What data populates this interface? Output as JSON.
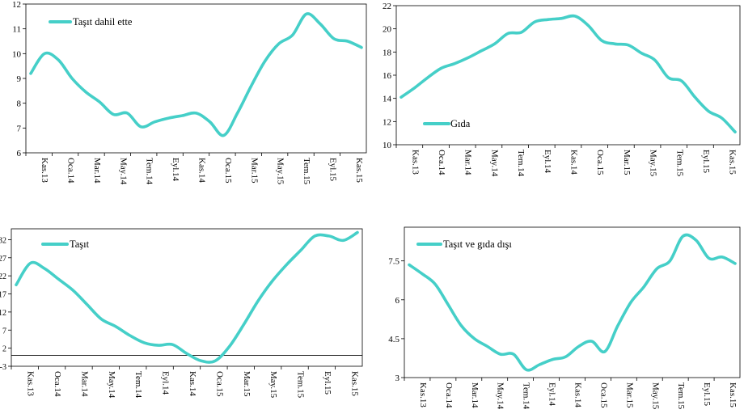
{
  "colors": {
    "line": "#45CFC8",
    "axis": "#000000"
  },
  "chart_data": [
    {
      "type": "line",
      "series": [
        {
          "name": "Taşıt dahil ette",
          "values": [
            9.2,
            10.0,
            9.75,
            9.0,
            8.45,
            8.05,
            7.55,
            7.6,
            7.05,
            7.25,
            7.4,
            7.5,
            7.6,
            7.25,
            6.7,
            7.6,
            8.7,
            9.7,
            10.4,
            10.75,
            11.6,
            11.2,
            10.6,
            10.5,
            10.25
          ]
        }
      ],
      "x_ticks": [
        "Kas.13",
        "Oca.14",
        "Mar.14",
        "May.14",
        "Tem.14",
        "Eyl.14",
        "Kas.14",
        "Oca.15",
        "Mar.15",
        "May.15",
        "Tem.15",
        "Eyl.15",
        "Kas.15"
      ],
      "y_ticks": [
        "6",
        "7",
        "8",
        "9",
        "10",
        "11",
        "12"
      ],
      "ylim": [
        6,
        12
      ],
      "legend": "top-left"
    },
    {
      "type": "line",
      "series": [
        {
          "name": "Gıda",
          "values": [
            14.1,
            14.9,
            15.8,
            16.6,
            17.0,
            17.5,
            18.1,
            18.7,
            19.6,
            19.7,
            20.6,
            20.8,
            20.9,
            21.1,
            20.3,
            19.0,
            18.7,
            18.6,
            17.9,
            17.3,
            15.8,
            15.5,
            14.1,
            12.9,
            12.3,
            11.1
          ]
        }
      ],
      "x_ticks": [
        "Kas.13",
        "Oca.14",
        "Mar.14",
        "May.14",
        "Tem.14",
        "Eyl.14",
        "Kas.14",
        "Oca.15",
        "Mar.15",
        "May.15",
        "Tem.15",
        "Eyl.15",
        "Kas.15"
      ],
      "y_ticks": [
        "10",
        "12",
        "14",
        "16",
        "18",
        "20",
        "22"
      ],
      "ylim": [
        10,
        22
      ],
      "legend": "bottom-left"
    },
    {
      "type": "line",
      "series": [
        {
          "name": "Taşıt",
          "values": [
            19.5,
            25.5,
            24.0,
            21.0,
            18.0,
            14.0,
            10.0,
            8.0,
            5.5,
            3.5,
            2.8,
            3.0,
            0.5,
            -1.5,
            -1.5,
            2.5,
            8.5,
            15.0,
            20.5,
            25.0,
            29.0,
            33.0,
            33.0,
            31.8,
            34.0
          ]
        }
      ],
      "x_ticks": [
        "Kas.13",
        "Oca.14",
        "Mar.14",
        "May.14",
        "Tem.14",
        "Eyl.14",
        "Kas.14",
        "Oca.15",
        "Mar.15",
        "May.15",
        "Tem.15",
        "Eyl.15",
        "Kas.15"
      ],
      "y_ticks": [
        "-3",
        "2",
        "7",
        "12",
        "17",
        "22",
        "27",
        "32"
      ],
      "ylim": [
        -3,
        35
      ],
      "legend": "top-left"
    },
    {
      "type": "line",
      "series": [
        {
          "name": "Taşıt ve gıda dışı",
          "values": [
            7.35,
            7.0,
            6.6,
            5.8,
            5.0,
            4.5,
            4.2,
            3.9,
            3.9,
            3.3,
            3.5,
            3.7,
            3.8,
            4.2,
            4.4,
            4.0,
            5.0,
            5.9,
            6.5,
            7.2,
            7.5,
            8.45,
            8.3,
            7.6,
            7.65,
            7.4
          ]
        }
      ],
      "x_ticks": [
        "Kas.13",
        "Oca.14",
        "Mar.14",
        "May.14",
        "Tem.14",
        "Eyl.14",
        "Kas.14",
        "Oca.15",
        "Mar.15",
        "May.15",
        "Tem.15",
        "Eyl.15",
        "Kas.15"
      ],
      "y_ticks": [
        "3",
        "4.5",
        "6",
        "7.5"
      ],
      "ylim": [
        3,
        8.8
      ],
      "legend": "top-left"
    }
  ]
}
